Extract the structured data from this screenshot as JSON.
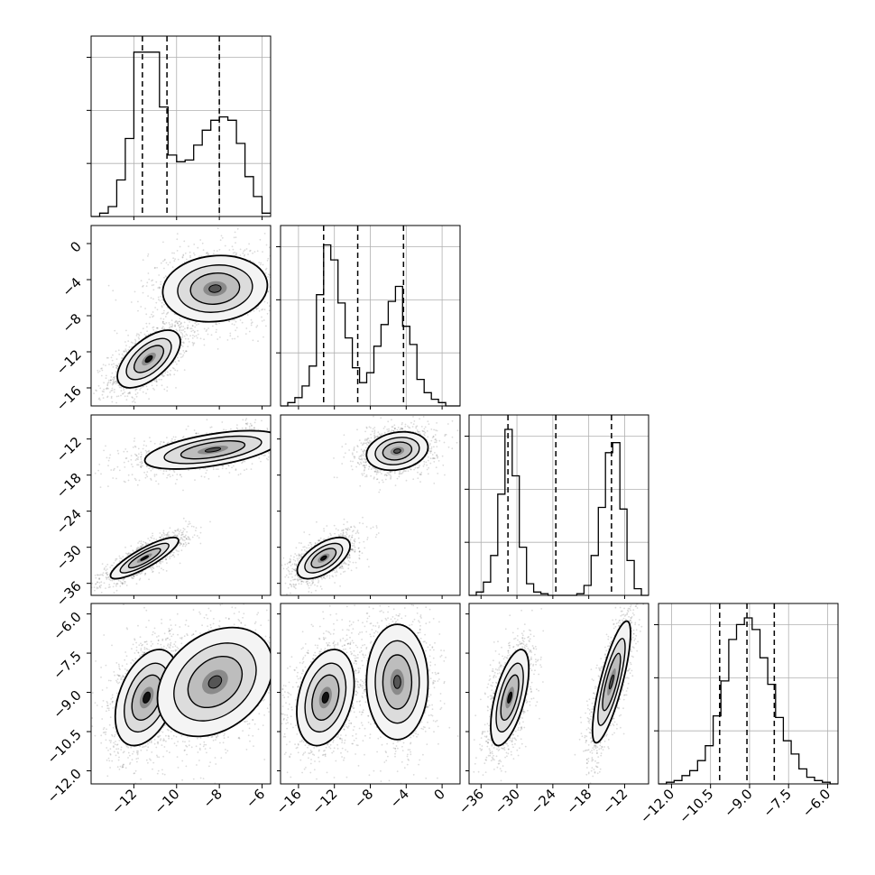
{
  "chart_data": {
    "type": "corner",
    "grid": true,
    "n_params": 4,
    "params": [
      {
        "name": "",
        "range": [
          -14.0,
          -5.6
        ],
        "ticks": [
          -12,
          -10,
          -8,
          -6
        ],
        "tick_labels": [
          "−12",
          "−10",
          "−8",
          "−6"
        ]
      },
      {
        "name": "",
        "range": [
          -18.0,
          2.0
        ],
        "ticks": [
          -16,
          -12,
          -8,
          -4,
          0
        ],
        "tick_labels": [
          "−16",
          "−12",
          "−8",
          "−4",
          "0"
        ]
      },
      {
        "name": "",
        "range": [
          -38.0,
          -8.0
        ],
        "ticks": [
          -36,
          -30,
          -24,
          -18,
          -12
        ],
        "tick_labels": [
          "−36",
          "−30",
          "−24",
          "−18",
          "−12"
        ]
      },
      {
        "name": "",
        "range": [
          -12.5,
          -5.6
        ],
        "ticks": [
          -12.0,
          -10.5,
          -9.0,
          -7.5,
          -6.0
        ],
        "tick_labels": [
          "−12.0",
          "−10.5",
          "−9.0",
          "−7.5",
          "−6.0"
        ]
      }
    ],
    "histograms": [
      {
        "param": 0,
        "quantiles": [
          -11.6,
          -10.45,
          -8.0
        ],
        "edges": [
          -14.0,
          -13.6,
          -13.2,
          -12.8,
          -12.4,
          -12.0,
          -11.6,
          -11.2,
          -10.8,
          -10.4,
          -10.0,
          -9.6,
          -9.2,
          -8.8,
          -8.4,
          -8.0,
          -7.6,
          -7.2,
          -6.8,
          -6.4,
          -6.0,
          -5.6
        ],
        "counts": [
          0.0,
          0.02,
          0.06,
          0.22,
          0.47,
          0.99,
          0.99,
          0.99,
          0.66,
          0.37,
          0.33,
          0.34,
          0.43,
          0.52,
          0.58,
          0.6,
          0.58,
          0.44,
          0.24,
          0.12,
          0.02
        ]
      },
      {
        "param": 1,
        "quantiles": [
          -13.2,
          -9.4,
          -4.3
        ],
        "edges": [
          -18.0,
          -17.2,
          -16.4,
          -15.6,
          -14.8,
          -14.0,
          -13.2,
          -12.4,
          -11.6,
          -10.8,
          -10.0,
          -9.2,
          -8.4,
          -7.6,
          -6.8,
          -6.0,
          -5.2,
          -4.4,
          -3.6,
          -2.8,
          -2.0,
          -1.2,
          -0.4,
          0.4,
          1.2,
          2.0
        ],
        "counts": [
          0.0,
          0.02,
          0.05,
          0.12,
          0.24,
          0.67,
          0.97,
          0.88,
          0.62,
          0.41,
          0.23,
          0.14,
          0.2,
          0.36,
          0.49,
          0.63,
          0.72,
          0.48,
          0.37,
          0.16,
          0.08,
          0.04,
          0.02,
          0.0,
          0.0
        ]
      },
      {
        "param": 2,
        "quantiles": [
          -31.5,
          -23.5,
          -14.2
        ],
        "edges": [
          -38.0,
          -36.8,
          -35.6,
          -34.4,
          -33.2,
          -32.0,
          -30.8,
          -29.6,
          -28.4,
          -27.2,
          -26.0,
          -24.8,
          -23.6,
          -22.4,
          -21.2,
          -20.0,
          -18.8,
          -17.6,
          -16.4,
          -15.2,
          -14.0,
          -12.8,
          -11.6,
          -10.4,
          -9.2,
          -8.0
        ],
        "counts": [
          0.0,
          0.02,
          0.08,
          0.24,
          0.61,
          1.0,
          0.72,
          0.29,
          0.07,
          0.02,
          0.01,
          0.0,
          0.0,
          0.0,
          0.0,
          0.01,
          0.06,
          0.24,
          0.53,
          0.86,
          0.92,
          0.52,
          0.21,
          0.04,
          0.0
        ]
      },
      {
        "param": 3,
        "quantiles": [
          -10.15,
          -9.1,
          -8.05
        ],
        "edges": [
          -12.5,
          -12.2,
          -11.9,
          -11.6,
          -11.3,
          -11.0,
          -10.7,
          -10.4,
          -10.1,
          -9.8,
          -9.5,
          -9.2,
          -8.9,
          -8.6,
          -8.3,
          -8.0,
          -7.7,
          -7.4,
          -7.1,
          -6.8,
          -6.5,
          -6.2,
          -5.9,
          -5.6
        ],
        "counts": [
          0.0,
          0.01,
          0.02,
          0.05,
          0.08,
          0.14,
          0.23,
          0.41,
          0.62,
          0.87,
          0.96,
          1.0,
          0.93,
          0.76,
          0.6,
          0.4,
          0.26,
          0.18,
          0.09,
          0.04,
          0.02,
          0.01,
          0.0
        ]
      }
    ],
    "pairs": [
      {
        "x": 0,
        "y": 1,
        "modes": [
          {
            "weight": 0.5,
            "mean": [
              -11.3,
              -12.8
            ],
            "sd": [
              0.6,
              1.3
            ],
            "corr": 0.6
          },
          {
            "weight": 0.5,
            "mean": [
              -8.2,
              -5.0
            ],
            "sd": [
              1.0,
              1.5
            ],
            "corr": 0.1
          }
        ]
      },
      {
        "x": 0,
        "y": 2,
        "modes": [
          {
            "weight": 0.5,
            "mean": [
              -11.5,
              -31.8
            ],
            "sd": [
              0.65,
              1.4
            ],
            "corr": 0.85
          },
          {
            "weight": 0.5,
            "mean": [
              -8.3,
              -13.8
            ],
            "sd": [
              1.3,
              1.3
            ],
            "corr": 0.55
          }
        ]
      },
      {
        "x": 1,
        "y": 2,
        "modes": [
          {
            "weight": 0.5,
            "mean": [
              -13.2,
              -31.8
            ],
            "sd": [
              1.2,
              1.4
            ],
            "corr": 0.6
          },
          {
            "weight": 0.5,
            "mean": [
              -5.0,
              -14.0
            ],
            "sd": [
              1.4,
              1.3
            ],
            "corr": 0.2
          }
        ]
      },
      {
        "x": 0,
        "y": 3,
        "modes": [
          {
            "weight": 0.5,
            "mean": [
              -11.4,
              -9.2
            ],
            "sd": [
              0.6,
              0.75
            ],
            "corr": 0.4
          },
          {
            "weight": 0.5,
            "mean": [
              -8.2,
              -8.6
            ],
            "sd": [
              1.1,
              0.85
            ],
            "corr": 0.3
          }
        ]
      },
      {
        "x": 1,
        "y": 3,
        "modes": [
          {
            "weight": 0.5,
            "mean": [
              -13.0,
              -9.2
            ],
            "sd": [
              1.3,
              0.75
            ],
            "corr": 0.3
          },
          {
            "weight": 0.5,
            "mean": [
              -5.0,
              -8.6
            ],
            "sd": [
              1.4,
              0.9
            ],
            "corr": 0.0
          }
        ]
      },
      {
        "x": 2,
        "y": 3,
        "modes": [
          {
            "weight": 0.5,
            "mean": [
              -31.2,
              -9.2
            ],
            "sd": [
              1.3,
              0.75
            ],
            "corr": 0.6
          },
          {
            "weight": 0.5,
            "mean": [
              -14.2,
              -8.6
            ],
            "sd": [
              1.3,
              0.95
            ],
            "corr": 0.8
          }
        ]
      }
    ]
  }
}
